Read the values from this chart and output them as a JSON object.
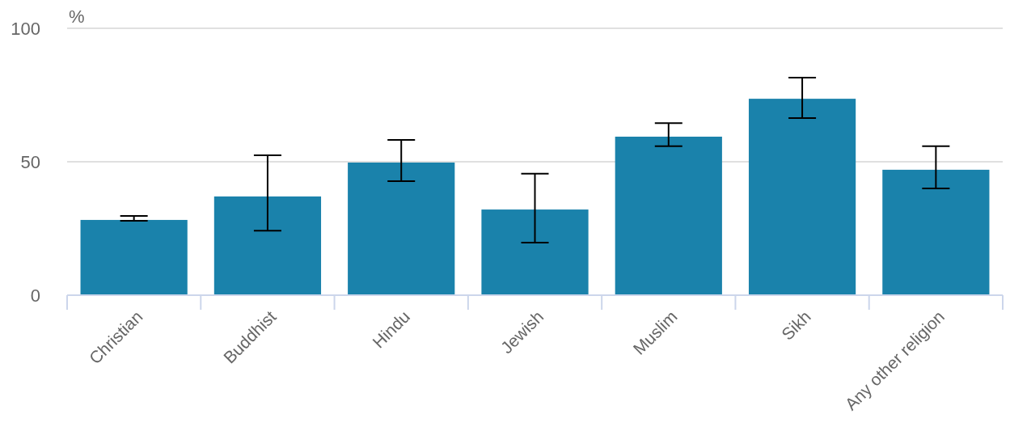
{
  "chart_data": {
    "type": "bar",
    "ylabel": "%",
    "categories": [
      "Christian",
      "Buddhist",
      "Hindu",
      "Jewish",
      "Muslim",
      "Sikh",
      "Any other religion"
    ],
    "values": [
      28.2,
      37,
      49.7,
      32.1,
      59.4,
      73.6,
      47
    ],
    "errors": [
      [
        27.9,
        29.7
      ],
      [
        24.2,
        52.4
      ],
      [
        42.7,
        58.2
      ],
      [
        19.7,
        45.5
      ],
      [
        55.8,
        64.5
      ],
      [
        66.4,
        81.5
      ],
      [
        40,
        55.8
      ]
    ],
    "color": "#1a82ab",
    "ylim": [
      0,
      100
    ],
    "yticks": [
      0,
      50,
      100
    ],
    "grid": "y"
  }
}
